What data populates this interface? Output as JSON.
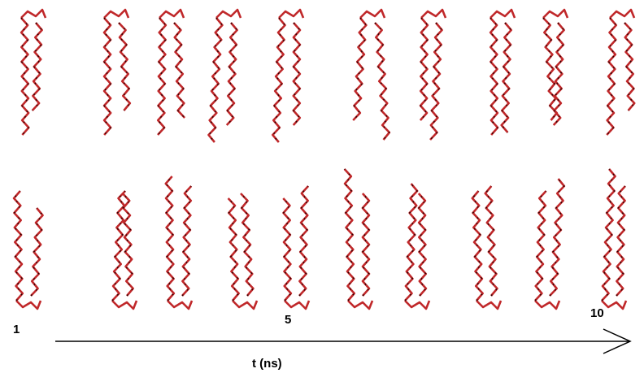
{
  "axis": {
    "ticks": [
      "1",
      "5",
      "10"
    ],
    "label": "t (ns)"
  }
}
